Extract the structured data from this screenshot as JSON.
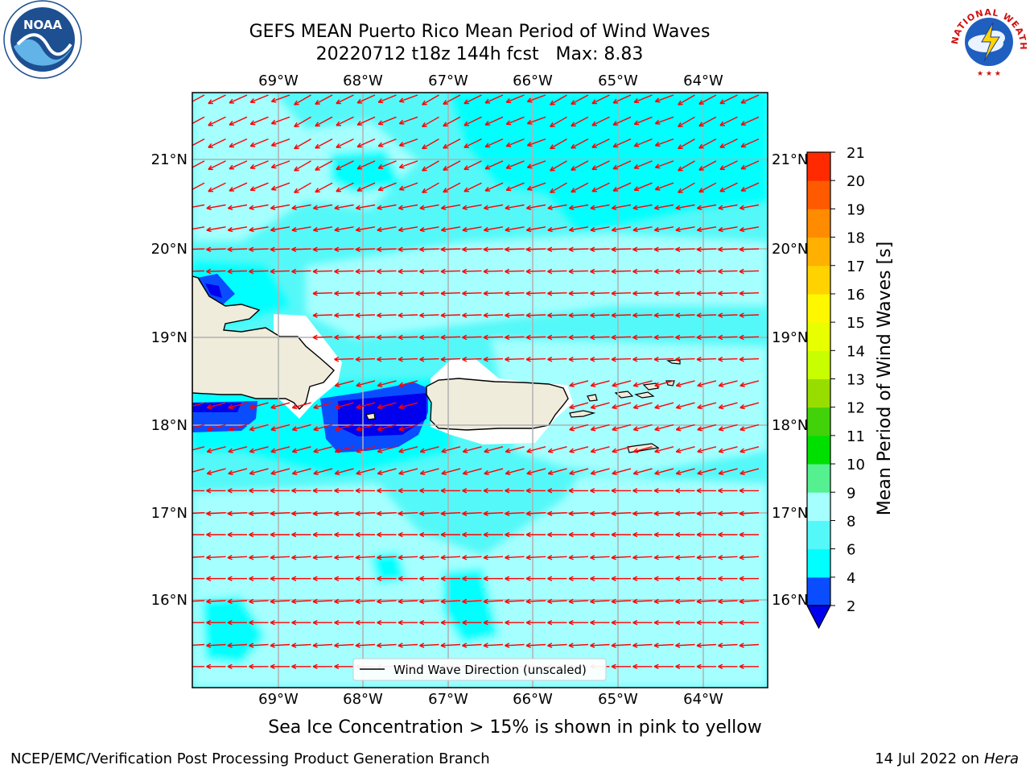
{
  "title": {
    "line1": "GEFS MEAN Puerto Rico Mean Period of Wind Waves",
    "line2": "20220712 t18z 144h fcst   Max: 8.83"
  },
  "map": {
    "lon_labels": [
      "69°W",
      "68°W",
      "67°W",
      "66°W",
      "65°W",
      "64°W"
    ],
    "lat_labels": [
      "21°N",
      "20°N",
      "19°N",
      "18°N",
      "17°N",
      "16°N"
    ],
    "legend_label": "Wind Wave Direction (unscaled)",
    "arrow_color": "#ff0000",
    "land_color": "#efecdc"
  },
  "colorbar": {
    "label": "Mean Period of Wind Waves [s]",
    "levels": [
      "2",
      "4",
      "6",
      "8",
      "9",
      "10",
      "11",
      "12",
      "13",
      "14",
      "15",
      "16",
      "17",
      "18",
      "19",
      "20",
      "21"
    ],
    "colors": [
      "#0a4dff",
      "#00ffff",
      "#55f8f8",
      "#a5ffff",
      "#55f08f",
      "#00e000",
      "#41d20a",
      "#98dd00",
      "#c8ff00",
      "#e8ff00",
      "#fff700",
      "#ffd200",
      "#ffb000",
      "#ff8b00",
      "#ff5a00",
      "#ff2a00"
    ],
    "under_color": "#0000ee"
  },
  "caption": "Sea Ice Concentration > 15% is shown in pink to yellow",
  "footer": {
    "left": "NCEP/EMC/Verification Post Processing Product Generation Branch",
    "date": "14 Jul 2022 on",
    "host": "Hera"
  },
  "logos": {
    "noaa_text": "NOAA",
    "nws_text": "NATIONAL WEATHER SERVICE"
  }
}
